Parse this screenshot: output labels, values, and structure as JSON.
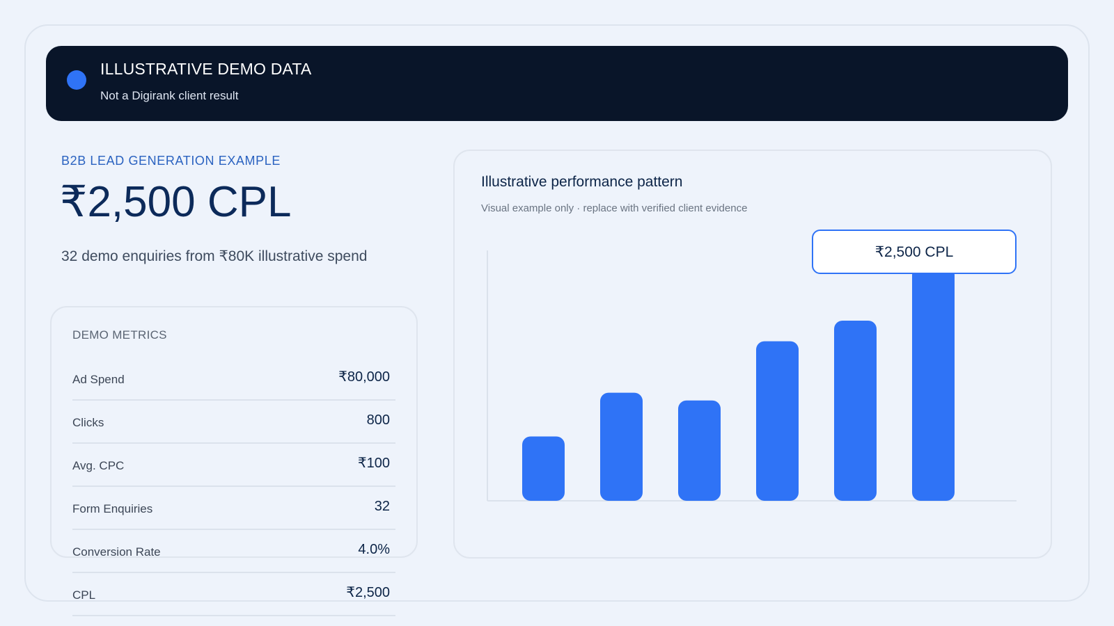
{
  "banner": {
    "title": "ILLUSTRATIVE DEMO DATA",
    "subtitle": "Not a Digirank client result",
    "dot_color": "#2f73f6"
  },
  "hero": {
    "eyebrow": "B2B LEAD GENERATION EXAMPLE",
    "headline": "₹2,500 CPL",
    "subline": "32 demo enquiries from ₹80K illustrative spend"
  },
  "metrics": {
    "title": "DEMO METRICS",
    "rows": [
      {
        "label": "Ad Spend",
        "value": "₹80,000"
      },
      {
        "label": "Clicks",
        "value": "800"
      },
      {
        "label": "Avg. CPC",
        "value": "₹100"
      },
      {
        "label": "Form Enquiries",
        "value": "32"
      },
      {
        "label": "Conversion Rate",
        "value": "4.0%"
      },
      {
        "label": "CPL",
        "value": "₹2,500"
      }
    ]
  },
  "chart_panel": {
    "title": "Illustrative performance pattern",
    "subtitle": "Visual example only · replace with verified client evidence",
    "callout": "₹2,500 CPL"
  },
  "chart_data": {
    "type": "bar",
    "values": [
      25,
      42,
      39,
      62,
      70,
      91
    ],
    "ylim": [
      0,
      100
    ],
    "bar_color": "#2f73f6",
    "grid": false
  }
}
